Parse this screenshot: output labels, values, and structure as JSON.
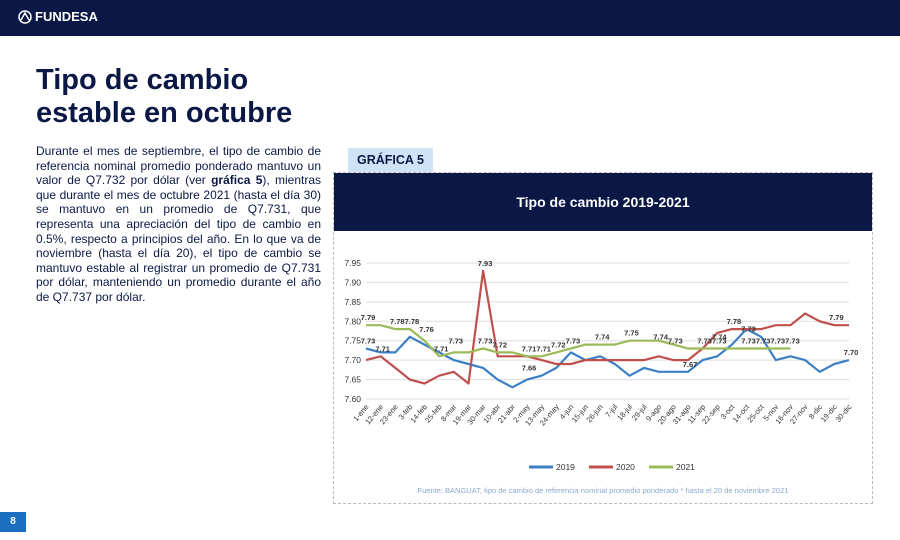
{
  "header": {
    "logo": "FUNDESA"
  },
  "title": [
    "Tipo de cambio",
    "estable en octubre"
  ],
  "paragraph": [
    {
      "text": "Durante el mes de septiembre, el tipo de cambio de referencia nominal promedio ponderado mantuvo un valor de Q7.732 por dólar (ver "
    },
    {
      "text": "gráfica 5",
      "bold": true
    },
    {
      "text": "), mientras que durante el mes de octubre 2021 (hasta el día 30) se mantuvo en un promedio de Q7.731, que representa una apreciación del tipo de cambio en 0.5%, respecto a principios del año.  En lo que va de noviembre (hasta el día 20), el tipo de cambio se mantuvo estable al registrar un promedio de Q7.731 por dólar, manteniendo un promedio durante el año de Q7.737 por dólar."
    }
  ],
  "tab": "GRÁFICA 5",
  "page_number": "8",
  "chart_data": {
    "type": "line",
    "title": "Tipo de cambio 2019-2021",
    "categories": [
      "1-ene",
      "12-ene",
      "23-ene",
      "3-feb",
      "14-feb",
      "25-feb",
      "8-mar",
      "19-mar",
      "30-mar",
      "10-abr",
      "21-abr",
      "2-may",
      "13-may",
      "24-may",
      "4-jun",
      "15-jun",
      "26-jun",
      "7-jul",
      "18-jul",
      "29-jul",
      "9-ago",
      "20-ago",
      "31-ago",
      "11-sep",
      "22-sep",
      "3-oct",
      "14-oct",
      "25-oct",
      "5-nov",
      "16-nov",
      "27-nov",
      "8-dic",
      "19-dic",
      "30-dic"
    ],
    "series": [
      {
        "name": "2019",
        "color": "#3c7fc4",
        "values": [
          7.73,
          7.72,
          7.72,
          7.76,
          7.74,
          7.72,
          7.7,
          7.69,
          7.68,
          7.65,
          7.63,
          7.65,
          7.66,
          7.68,
          7.72,
          7.7,
          7.71,
          7.69,
          7.66,
          7.68,
          7.67,
          7.67,
          7.67,
          7.7,
          7.71,
          7.74,
          7.78,
          7.76,
          7.7,
          7.71,
          7.7,
          7.67,
          7.69,
          7.7
        ]
      },
      {
        "name": "2020",
        "color": "#c0504d",
        "values": [
          7.7,
          7.71,
          7.68,
          7.65,
          7.64,
          7.66,
          7.67,
          7.64,
          7.93,
          7.71,
          7.71,
          7.71,
          7.7,
          7.69,
          7.69,
          7.7,
          7.7,
          7.7,
          7.7,
          7.7,
          7.71,
          7.7,
          7.7,
          7.73,
          7.77,
          7.78,
          7.78,
          7.78,
          7.79,
          7.79,
          7.82,
          7.8,
          7.79,
          7.79
        ]
      },
      {
        "name": "2021",
        "color": "#9bbb59",
        "values": [
          7.79,
          7.79,
          7.78,
          7.78,
          7.75,
          7.71,
          7.72,
          7.72,
          7.73,
          7.72,
          7.72,
          7.71,
          7.71,
          7.72,
          7.73,
          7.74,
          7.74,
          7.74,
          7.75,
          7.75,
          7.75,
          7.74,
          7.73,
          7.73,
          7.73,
          7.73,
          7.73,
          7.73,
          7.73,
          7.73,
          null,
          null,
          null,
          null
        ]
      }
    ],
    "ylim": [
      7.6,
      7.95
    ],
    "yticks": [
      {
        "value": 7.6,
        "label": "7.60"
      },
      {
        "value": 7.65,
        "label": "7.65"
      },
      {
        "value": 7.7,
        "label": "7.70"
      },
      {
        "value": 7.75,
        "label": "7.75"
      },
      {
        "value": 7.8,
        "label": "7.80"
      },
      {
        "value": 7.85,
        "label": "7.85"
      },
      {
        "value": 7.9,
        "label": "7.90"
      },
      {
        "value": 7.95,
        "label": "7.95"
      }
    ],
    "grid": true,
    "annotations": [
      {
        "category": "1-ene",
        "value": 7.79,
        "label": "7.79"
      },
      {
        "category": "1-ene",
        "value": 7.73,
        "label": "7.73"
      },
      {
        "category": "12-ene",
        "value": 7.71,
        "label": "7.71"
      },
      {
        "category": "23-ene",
        "value": 7.78,
        "label": "7.78"
      },
      {
        "category": "3-feb",
        "value": 7.78,
        "label": "7.78"
      },
      {
        "category": "14-feb",
        "value": 7.76,
        "label": "7.76"
      },
      {
        "category": "25-feb",
        "value": 7.71,
        "label": "7.71"
      },
      {
        "category": "8-mar",
        "value": 7.73,
        "label": "7.73"
      },
      {
        "category": "30-mar",
        "value": 7.93,
        "label": "7.93"
      },
      {
        "category": "30-mar",
        "value": 7.73,
        "label": "7.73"
      },
      {
        "category": "10-abr",
        "value": 7.72,
        "label": "7.72"
      },
      {
        "category": "2-may",
        "value": 7.71,
        "label": "7.71"
      },
      {
        "category": "2-may",
        "value": 7.66,
        "label": "7.66"
      },
      {
        "category": "13-may",
        "value": 7.71,
        "label": "7.71"
      },
      {
        "category": "24-may",
        "value": 7.72,
        "label": "7.72"
      },
      {
        "category": "4-jun",
        "value": 7.73,
        "label": "7.73"
      },
      {
        "category": "26-jun",
        "value": 7.74,
        "label": "7.74"
      },
      {
        "category": "18-jul",
        "value": 7.75,
        "label": "7.75"
      },
      {
        "category": "9-ago",
        "value": 7.74,
        "label": "7.74"
      },
      {
        "category": "20-ago",
        "value": 7.73,
        "label": "7.73"
      },
      {
        "category": "31-ago",
        "value": 7.67,
        "label": "7.67"
      },
      {
        "category": "11-sep",
        "value": 7.73,
        "label": "7.73"
      },
      {
        "category": "22-sep",
        "value": 7.73,
        "label": "7.73"
      },
      {
        "category": "22-sep",
        "value": 7.74,
        "label": "7.74"
      },
      {
        "category": "3-oct",
        "value": 7.78,
        "label": "7.78"
      },
      {
        "category": "14-oct",
        "value": 7.73,
        "label": "7.73"
      },
      {
        "category": "14-oct",
        "value": 7.73,
        "label": "7.73"
      },
      {
        "category": "25-oct",
        "value": 7.73,
        "label": "7.73"
      },
      {
        "category": "5-nov",
        "value": 7.73,
        "label": "7.73"
      },
      {
        "category": "16-nov",
        "value": 7.73,
        "label": "7.73"
      },
      {
        "category": "19-dic",
        "value": 7.79,
        "label": "7.79"
      },
      {
        "category": "30-dic",
        "value": 7.7,
        "label": "7.70"
      }
    ],
    "source": "Fuente: BANGUAT, tipo de cambio de referencia nominal promedio ponderado * hasta el 20 de noviembre 2021"
  }
}
